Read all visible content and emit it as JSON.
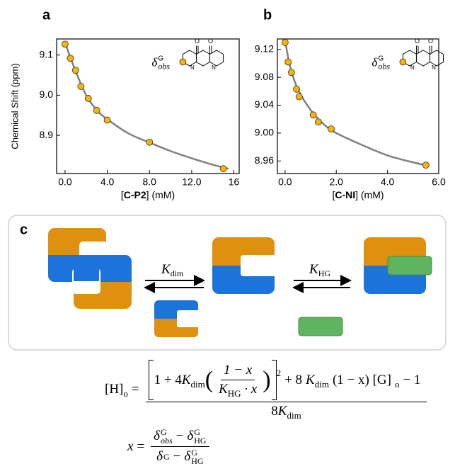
{
  "chart_data": [
    {
      "type": "scatter",
      "label": "a",
      "ylabel": "Chemical Shift (ppm)",
      "xlabel": {
        "open": "[",
        "bold": "C-P2",
        "close": "] (mM)"
      },
      "xlim": [
        -0.8,
        16.5
      ],
      "ylim": [
        8.805,
        9.14
      ],
      "xticks": [
        {
          "value": 0,
          "label": "0.0"
        },
        {
          "value": 4,
          "label": "4.0"
        },
        {
          "value": 8,
          "label": "8.0"
        },
        {
          "value": 12,
          "label": "12.0"
        },
        16
      ],
      "yticks": [
        8.9,
        {
          "value": 9,
          "label": "9.0"
        },
        9.1
      ],
      "series": [
        {
          "type": "line",
          "color": "#808080",
          "x": [
            0,
            1,
            2,
            3,
            4,
            6,
            8,
            10,
            12,
            14,
            15.5
          ],
          "values": [
            9.13,
            9.06,
            9.0,
            8.963,
            8.94,
            8.905,
            8.882,
            8.861,
            8.843,
            8.827,
            8.817
          ]
        },
        {
          "type": "scatter",
          "color": "#f7b500",
          "x": [
            0,
            0.5,
            1,
            1.5,
            2.2,
            3,
            4,
            8,
            15
          ],
          "values": [
            9.127,
            9.092,
            9.062,
            9.022,
            8.992,
            8.962,
            8.938,
            8.883,
            8.817
          ]
        }
      ],
      "annotation": {
        "symbol": "δ",
        "sup": "G",
        "sub": "obs"
      },
      "inset_atoms": [
        "O",
        "O",
        "N",
        "N"
      ]
    },
    {
      "type": "scatter",
      "label": "b",
      "xlabel": {
        "open": "[",
        "bold": "C-NI",
        "close": "] (mM)"
      },
      "xlim": [
        -0.3,
        6.0
      ],
      "ylim": [
        8.942,
        9.135
      ],
      "xticks": [
        {
          "value": 0,
          "label": "0.0"
        },
        {
          "value": 2,
          "label": "2.0"
        },
        {
          "value": 4,
          "label": "4.0"
        },
        {
          "value": 6,
          "label": "6.0"
        }
      ],
      "yticks": [
        8.96,
        {
          "value": 9,
          "label": "9.00"
        },
        9.04,
        9.08,
        9.12
      ],
      "series": [
        {
          "type": "line",
          "color": "#808080",
          "x": [
            0,
            0.2,
            0.5,
            1,
            1.5,
            2,
            3,
            4,
            5,
            5.6
          ],
          "values": [
            9.133,
            9.095,
            9.063,
            9.033,
            9.013,
            9.0,
            8.983,
            8.968,
            8.958,
            8.953
          ]
        },
        {
          "type": "scatter",
          "color": "#f7b500",
          "x": [
            0,
            0.12,
            0.25,
            0.45,
            0.55,
            1.1,
            1.3,
            1.8,
            5.5
          ],
          "values": [
            9.13,
            9.102,
            9.087,
            9.063,
            9.052,
            9.026,
            9.016,
            9.006,
            8.954
          ]
        }
      ],
      "annotation": {
        "symbol": "δ",
        "sup": "G",
        "sub": "obs"
      },
      "inset_atoms": [
        "O",
        "O",
        "N",
        "N"
      ]
    }
  ],
  "diagram": {
    "label": "c",
    "k_dim": {
      "symbol": "K",
      "sub": "dim"
    },
    "k_hg": {
      "symbol": "K",
      "sub": "HG"
    }
  },
  "equations": {
    "host": {
      "lhs": "[H]",
      "lhs_sub": "o",
      "equals": "=",
      "a": "1 + 4",
      "k1": "K",
      "k1_sub": "dim",
      "lparen": "(",
      "inner_num": "1 − x",
      "k2": "K",
      "k2_sub": "HG",
      "inner_den_tail": "· x",
      "rparen": ")",
      "power": "2",
      "b": "+ 8",
      "k3": "K",
      "k3_sub": "dim",
      "c": "(1 − x) [G]",
      "c_sub": "o",
      "d": "− 1",
      "den": "8",
      "k4": "K",
      "k4_sub": "dim"
    },
    "fraction": {
      "lhs": "x",
      "equals": "=",
      "n1": "δ",
      "n1_sup": "G",
      "n1_sub": "obs",
      "minus1": "−",
      "n2": "δ",
      "n2_sup": "G",
      "n2_sub": "HG",
      "d1": "δ",
      "d1_sup": "G",
      "minus2": "−",
      "d2": "δ",
      "d2_sup": "G",
      "d2_sub": "HG"
    }
  }
}
